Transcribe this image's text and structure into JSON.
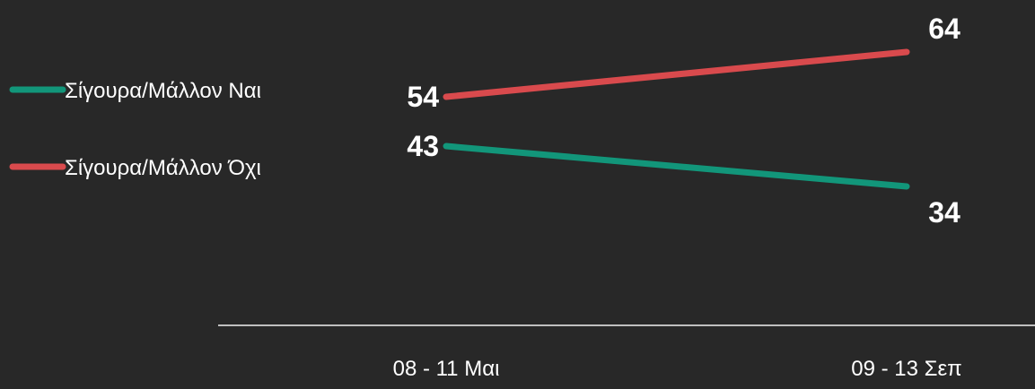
{
  "chart_data": {
    "type": "line",
    "categories": [
      "08 - 11 Μαι",
      "09 - 13 Σεπ"
    ],
    "series": [
      {
        "name": "Σίγουρα/Μάλλον Ναι",
        "values": [
          43,
          34
        ],
        "color": "#12967a"
      },
      {
        "name": "Σίγουρα/Μάλλον Όχι",
        "values": [
          54,
          64
        ],
        "color": "#d94a4d"
      }
    ],
    "legend_position": "left",
    "grid": false
  },
  "colors": {
    "background": "#282828",
    "axis": "#bfbfbf",
    "text": "#ffffff"
  }
}
